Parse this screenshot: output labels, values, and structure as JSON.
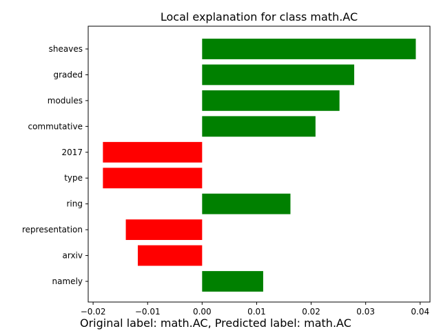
{
  "chart_data": {
    "type": "bar",
    "orientation": "horizontal",
    "title": "Local explanation for class math.AC",
    "categories": [
      "sheaves",
      "graded",
      "modules",
      "commutative",
      "2017",
      "type",
      "ring",
      "representation",
      "arxiv",
      "namely"
    ],
    "values": [
      0.0392,
      0.0279,
      0.0252,
      0.0208,
      -0.0182,
      -0.0182,
      0.0162,
      -0.014,
      -0.0118,
      0.0112
    ],
    "colors": {
      "positive": "#008000",
      "negative": "#ff0000"
    },
    "xlim": [
      -0.0209,
      0.0418
    ],
    "xticks": [
      -0.02,
      -0.01,
      0.0,
      0.01,
      0.02,
      0.03,
      0.04
    ],
    "xtick_labels": [
      "−0.02",
      "−0.01",
      "0.00",
      "0.01",
      "0.02",
      "0.03",
      "0.04"
    ],
    "grid": false,
    "legend": "none"
  },
  "caption": "Original label: math.AC, Predicted label: math.AC"
}
